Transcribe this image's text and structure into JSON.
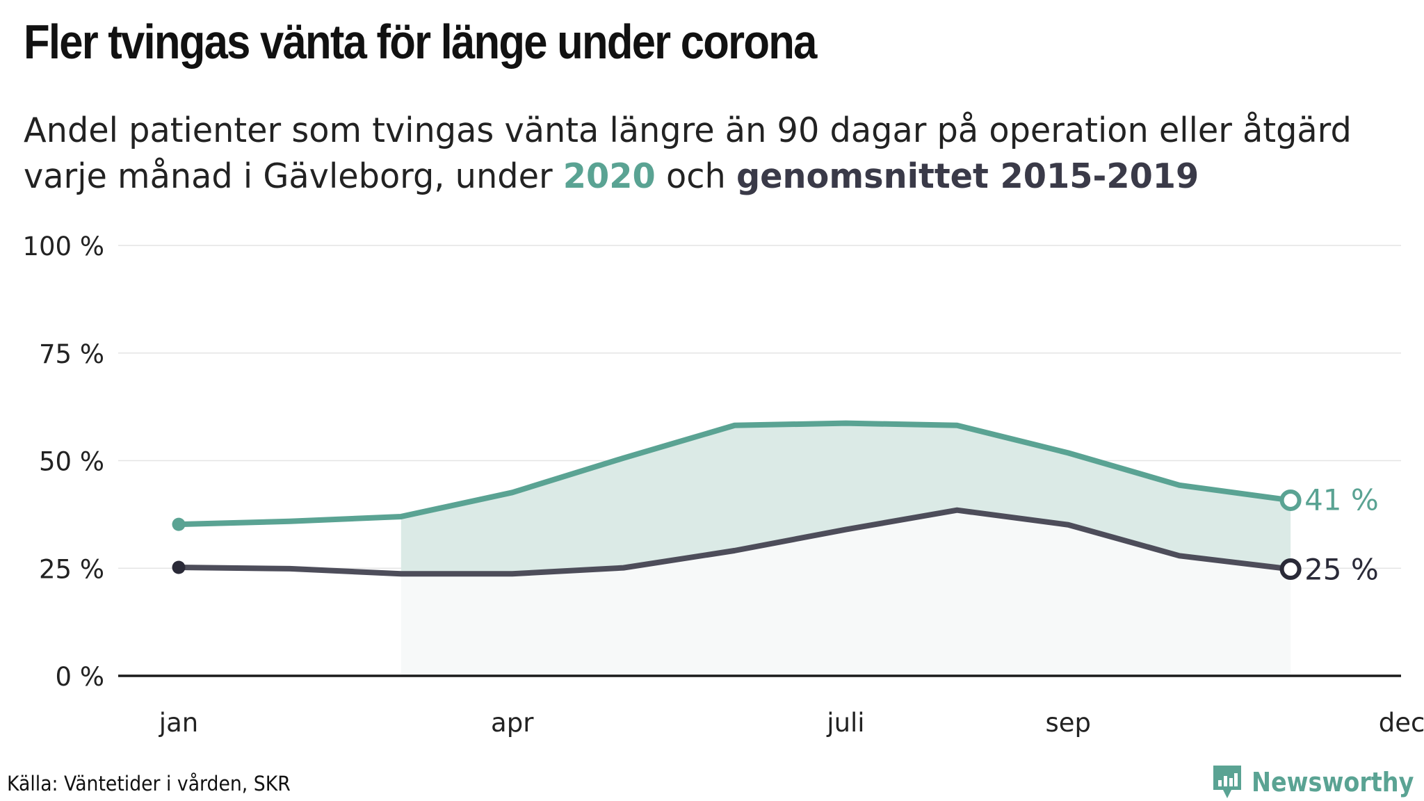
{
  "header": {
    "title": "Fler tvingas vänta för länge under corona",
    "subtitle_part1": "Andel patienter som tvingas vänta längre än 90 dagar på operation eller åtgärd varje månad i Gävleborg, under ",
    "subtitle_hl_2020": "2020",
    "subtitle_part2": " och ",
    "subtitle_hl_avg": "genomsnittet 2015-2019"
  },
  "footer": {
    "source": "Källa: Väntetider i vården, SKR",
    "brand": "Newsworthy",
    "brand_icon": "newsworthy-logo-icon"
  },
  "colors": {
    "series_2020": "#5aa393",
    "series_avg": "#4d4d5a",
    "marker_avg": "#2a2a38",
    "band_fill": "#dbeae6",
    "gridline": "#e4e4e4",
    "axis": "#1a1a1a"
  },
  "chart_data": {
    "type": "line",
    "x": [
      1,
      2,
      3,
      4,
      5,
      6,
      7,
      8,
      9,
      10,
      11
    ],
    "x_range": [
      1,
      12
    ],
    "x_ticks": [
      {
        "label": "jan",
        "value": 1
      },
      {
        "label": "apr",
        "value": 4
      },
      {
        "label": "juli",
        "value": 7
      },
      {
        "label": "sep",
        "value": 9
      },
      {
        "label": "dec",
        "value": 12
      }
    ],
    "ylim": [
      0,
      100
    ],
    "y_ticks": [
      {
        "label": "0 %",
        "value": 0
      },
      {
        "label": "25 %",
        "value": 25
      },
      {
        "label": "50 %",
        "value": 50
      },
      {
        "label": "75 %",
        "value": 75
      },
      {
        "label": "100 %",
        "value": 100
      }
    ],
    "grid": true,
    "shaded_between_series_from_x": 3,
    "series": [
      {
        "name": "2020",
        "values": [
          35.2,
          35.9,
          37.0,
          42.6,
          50.6,
          58.2,
          58.7,
          58.2,
          51.8,
          44.3,
          40.8
        ],
        "end_label": "41 %"
      },
      {
        "name": "genomsnittet 2015-2019",
        "values": [
          25.2,
          24.9,
          23.7,
          23.7,
          25.1,
          29.1,
          34.0,
          38.5,
          35.1,
          27.9,
          24.8
        ],
        "end_label": "25 %"
      }
    ]
  }
}
